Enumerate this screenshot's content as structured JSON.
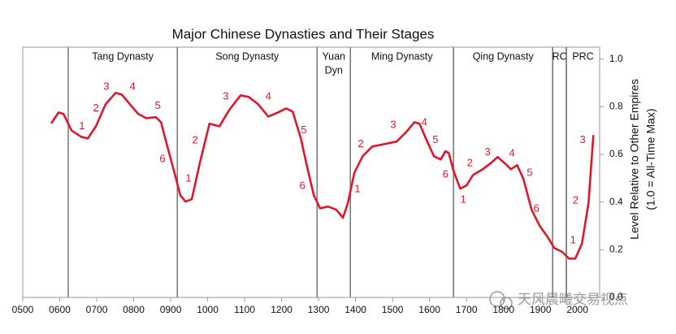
{
  "chart_data": {
    "type": "line",
    "title": "Major Chinese Dynasties and Their Stages",
    "y_label": [
      "Level Relative to Other Empires",
      "(1.0 = All-Time Max)"
    ],
    "x": [
      577,
      597,
      610,
      632,
      658,
      676,
      698,
      724,
      751,
      768,
      790,
      812,
      834,
      860,
      874,
      891,
      909,
      926,
      940,
      957,
      979,
      1005,
      1032,
      1058,
      1089,
      1111,
      1137,
      1164,
      1190,
      1212,
      1230,
      1252,
      1269,
      1287,
      1304,
      1326,
      1348,
      1366,
      1379,
      1397,
      1419,
      1445,
      1477,
      1511,
      1537,
      1559,
      1573,
      1590,
      1612,
      1630,
      1643,
      1652,
      1665,
      1683,
      1700,
      1718,
      1744,
      1767,
      1784,
      1802,
      1820,
      1837,
      1854,
      1876,
      1898,
      1920,
      1937,
      1959,
      1977,
      1994,
      2012,
      2030,
      2043
    ],
    "series": [
      {
        "color": "#e0162b",
        "values": [
          0.73,
          0.776,
          0.77,
          0.7,
          0.674,
          0.667,
          0.718,
          0.81,
          0.858,
          0.851,
          0.81,
          0.77,
          0.752,
          0.756,
          0.735,
          0.633,
          0.531,
          0.429,
          0.402,
          0.412,
          0.565,
          0.729,
          0.718,
          0.786,
          0.848,
          0.841,
          0.81,
          0.759,
          0.776,
          0.793,
          0.78,
          0.667,
          0.548,
          0.429,
          0.374,
          0.381,
          0.368,
          0.334,
          0.395,
          0.524,
          0.592,
          0.633,
          0.643,
          0.654,
          0.694,
          0.735,
          0.729,
          0.667,
          0.592,
          0.579,
          0.613,
          0.606,
          0.531,
          0.456,
          0.47,
          0.514,
          0.538,
          0.565,
          0.589,
          0.565,
          0.538,
          0.555,
          0.497,
          0.368,
          0.3,
          0.252,
          0.208,
          0.191,
          0.163,
          0.163,
          0.225,
          0.395,
          0.681
        ]
      }
    ],
    "xlim": [
      500,
      2060
    ],
    "ylim": [
      0,
      1.05
    ],
    "xticks": [
      {
        "value": 500,
        "label": "0500"
      },
      {
        "value": 600,
        "label": "0600"
      },
      {
        "value": 700,
        "label": "0700"
      },
      {
        "value": 800,
        "label": "0800"
      },
      {
        "value": 900,
        "label": "0900"
      },
      1000,
      1100,
      1200,
      1300,
      1400,
      1500,
      1600,
      1700,
      1800,
      1900,
      2000
    ],
    "yticks": [
      {
        "value": 0,
        "label": "0.0"
      },
      0.2,
      0.4,
      0.6,
      0.8,
      {
        "value": 1,
        "label": "1.0"
      }
    ],
    "regions": [
      {
        "label": [
          "Tang Dynasty"
        ],
        "start": 623,
        "end": 918
      },
      {
        "label": [
          "Song Dynasty"
        ],
        "start": 918,
        "end": 1296
      },
      {
        "label": [
          "Yuan",
          "Dyn"
        ],
        "start": 1296,
        "end": 1386
      },
      {
        "label": [
          "Ming Dynasty"
        ],
        "start": 1386,
        "end": 1665
      },
      {
        "label": [
          "Qing Dynasty"
        ],
        "start": 1665,
        "end": 1933
      },
      {
        "label": [
          "RC"
        ],
        "start": 1933,
        "end": 1970
      },
      {
        "label": [
          "PRC"
        ],
        "start": 1970,
        "end": 2060
      }
    ],
    "annotations": [
      {
        "text": "1",
        "x": 660,
        "y": 0.718
      },
      {
        "text": "2",
        "x": 698,
        "y": 0.793
      },
      {
        "text": "3",
        "x": 726,
        "y": 0.882
      },
      {
        "text": "4",
        "x": 797,
        "y": 0.882
      },
      {
        "text": "5",
        "x": 865,
        "y": 0.803
      },
      {
        "text": "6",
        "x": 878,
        "y": 0.579
      },
      {
        "text": "1",
        "x": 948,
        "y": 0.497
      },
      {
        "text": "2",
        "x": 966,
        "y": 0.657
      },
      {
        "text": "3",
        "x": 1049,
        "y": 0.841
      },
      {
        "text": "4",
        "x": 1164,
        "y": 0.841
      },
      {
        "text": "5",
        "x": 1260,
        "y": 0.701
      },
      {
        "text": "6",
        "x": 1256,
        "y": 0.466
      },
      {
        "text": "1",
        "x": 1405,
        "y": 0.453
      },
      {
        "text": "2",
        "x": 1414,
        "y": 0.643
      },
      {
        "text": "3",
        "x": 1502,
        "y": 0.722
      },
      {
        "text": "4",
        "x": 1586,
        "y": 0.732
      },
      {
        "text": "5",
        "x": 1616,
        "y": 0.66
      },
      {
        "text": "6",
        "x": 1643,
        "y": 0.514
      },
      {
        "text": "1",
        "x": 1691,
        "y": 0.409
      },
      {
        "text": "2",
        "x": 1709,
        "y": 0.562
      },
      {
        "text": "3",
        "x": 1757,
        "y": 0.609
      },
      {
        "text": "4",
        "x": 1823,
        "y": 0.603
      },
      {
        "text": "5",
        "x": 1871,
        "y": 0.521
      },
      {
        "text": "6",
        "x": 1889,
        "y": 0.371
      },
      {
        "text": "1",
        "x": 1988,
        "y": 0.238
      },
      {
        "text": "2",
        "x": 1995,
        "y": 0.405
      },
      {
        "text": "3",
        "x": 2014,
        "y": 0.66
      }
    ],
    "watermark": "天风晨曦交易视点"
  }
}
